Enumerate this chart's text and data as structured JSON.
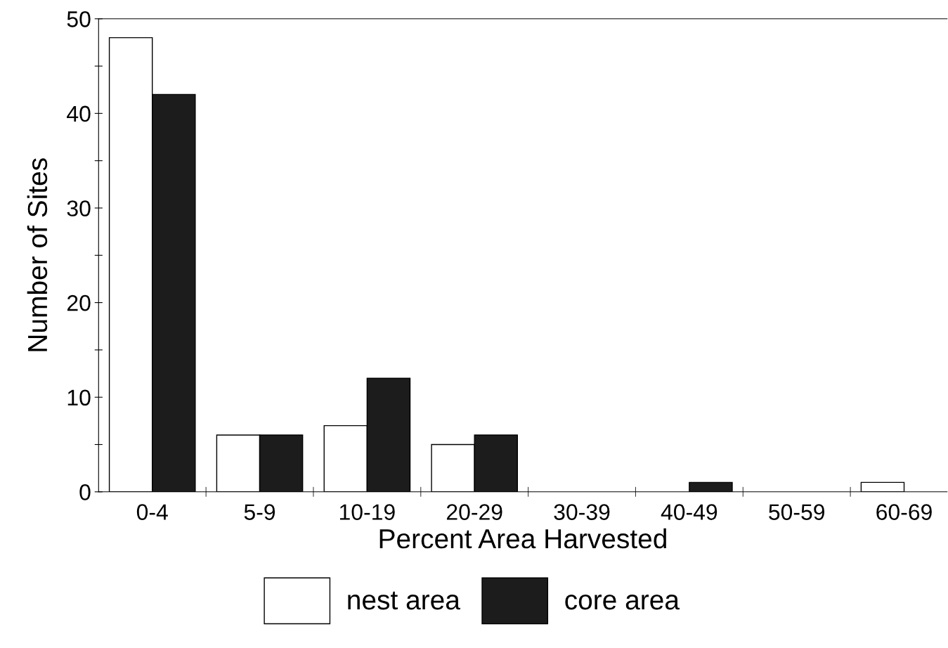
{
  "chart_data": {
    "type": "bar",
    "xlabel": "Percent Area Harvested",
    "ylabel": "Number of Sites",
    "categories": [
      "0-4",
      "5-9",
      "10-19",
      "20-29",
      "30-39",
      "40-49",
      "50-59",
      "60-69"
    ],
    "series": [
      {
        "name": "nest area",
        "color": "#ffffff",
        "values": [
          48,
          6,
          7,
          5,
          0,
          0,
          0,
          1
        ]
      },
      {
        "name": "core area",
        "color": "#1c1c1c",
        "values": [
          42,
          6,
          12,
          6,
          0,
          1,
          0,
          0
        ]
      }
    ],
    "ylim": [
      0,
      50
    ],
    "yticks": [
      0,
      {
        "value": 5,
        "label": null
      },
      10,
      {
        "value": 15,
        "label": null
      },
      20,
      {
        "value": 25,
        "label": null
      },
      30,
      {
        "value": 35,
        "label": null
      },
      40,
      {
        "value": 45,
        "label": null
      },
      50
    ],
    "grid": false,
    "legend": "bottom"
  }
}
